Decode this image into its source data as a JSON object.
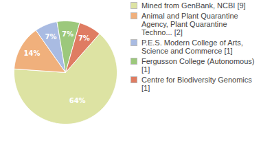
{
  "chart_data": {
    "type": "pie",
    "categories": [
      "Mined from GenBank, NCBI [9]",
      "Animal and Plant Quarantine Agency, Plant Quarantine Techno... [2]",
      "P.E.S. Modern College of Arts, Science and Commerce [1]",
      "Fergusson College (Autonomous) [1]",
      "Centre for Biodiversity Genomics [1]"
    ],
    "values": [
      64,
      14,
      7,
      7,
      7
    ],
    "value_labels": [
      "64%",
      "14%",
      "7%",
      "7%",
      "7%"
    ],
    "colors": [
      "#dde3a3",
      "#f0b07c",
      "#a9bbe2",
      "#9cc87c",
      "#df7c62"
    ],
    "data_labels": true,
    "legend": "right"
  }
}
